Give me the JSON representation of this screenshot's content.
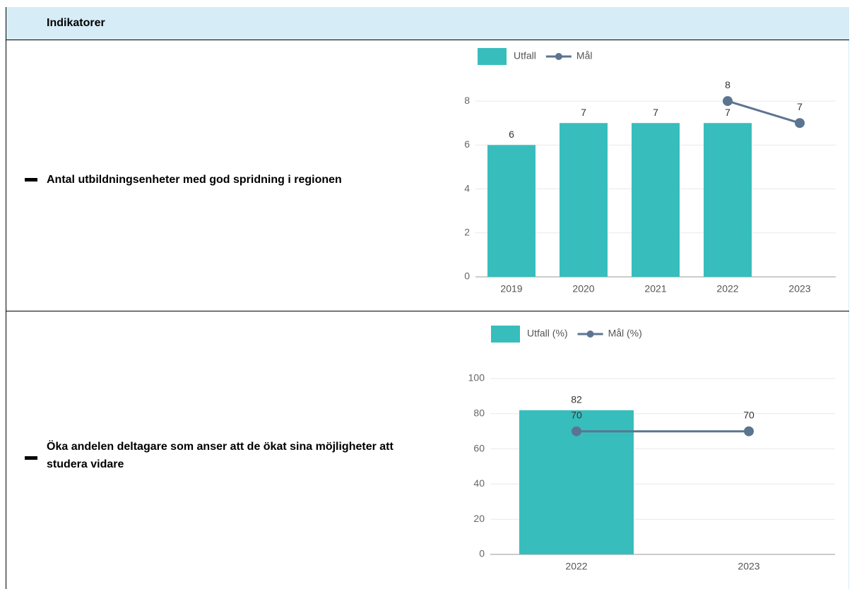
{
  "header": {
    "title": "Indikatorer"
  },
  "rows": [
    {
      "label": "Antal utbildningsenheter med god spridning i regionen"
    },
    {
      "label": "Öka andelen deltagare som anser att de ökat sina möjligheter att studera vidare"
    }
  ],
  "chart_data": [
    {
      "type": "bar_line",
      "categories": [
        "2019",
        "2020",
        "2021",
        "2022",
        "2023"
      ],
      "series": [
        {
          "name": "Utfall",
          "type": "bar",
          "color": "#38bdbd",
          "values": [
            6,
            7,
            7,
            7,
            null
          ]
        },
        {
          "name": "Mål",
          "type": "line",
          "color": "#5b7590",
          "values": [
            null,
            null,
            null,
            8,
            7
          ]
        }
      ],
      "ylim": [
        0,
        9
      ],
      "yticks": [
        0,
        2,
        4,
        6,
        8
      ],
      "grid": true,
      "legend": "top"
    },
    {
      "type": "bar_line",
      "categories": [
        "2022",
        "2023"
      ],
      "series": [
        {
          "name": "Utfall (%)",
          "type": "bar",
          "color": "#38bdbd",
          "values": [
            82,
            null
          ]
        },
        {
          "name": "Mål (%)",
          "type": "line",
          "color": "#5b7590",
          "values": [
            70,
            70
          ]
        }
      ],
      "ylim": [
        0,
        100
      ],
      "yticks": [
        0,
        20,
        40,
        60,
        80,
        100
      ],
      "grid": true,
      "legend": "top"
    }
  ]
}
